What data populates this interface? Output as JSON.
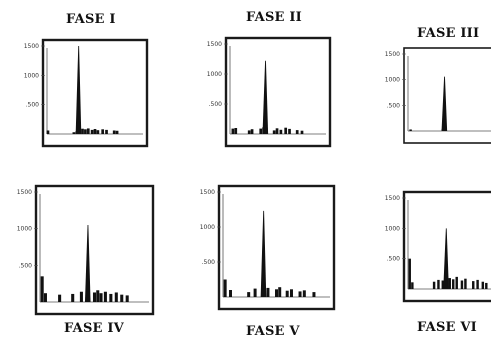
{
  "figure": {
    "colors": {
      "ink": "#111111",
      "frame": "#1a1a1a",
      "axis": "#555555",
      "label": "#333333"
    }
  },
  "chart_data": [
    {
      "type": "bar",
      "title": "FASE I",
      "yticks": [
        "1500",
        "1000",
        ".500"
      ],
      "ylim": [
        0,
        1500
      ],
      "grid": false,
      "peak": {
        "x": 0.33,
        "value": 1500
      },
      "x": [
        0.01,
        0.28,
        0.31,
        0.37,
        0.4,
        0.43,
        0.47,
        0.5,
        0.53,
        0.58,
        0.62,
        0.7,
        0.73
      ],
      "values": [
        60,
        30,
        45,
        90,
        80,
        95,
        70,
        85,
        65,
        80,
        70,
        60,
        55
      ]
    },
    {
      "type": "bar",
      "title": "FASE II",
      "yticks": [
        "1500",
        "1000",
        ".500"
      ],
      "ylim": [
        0,
        1500
      ],
      "grid": false,
      "peak": {
        "x": 0.37,
        "value": 1220
      },
      "x": [
        0.03,
        0.06,
        0.2,
        0.23,
        0.32,
        0.35,
        0.46,
        0.49,
        0.53,
        0.58,
        0.62,
        0.7,
        0.75
      ],
      "values": [
        90,
        100,
        60,
        80,
        90,
        110,
        60,
        95,
        70,
        105,
        85,
        65,
        55
      ]
    },
    {
      "type": "bar",
      "title": "FASE III",
      "yticks": [
        "1500",
        "1000",
        ".500"
      ],
      "ylim": [
        0,
        1500
      ],
      "grid": false,
      "peak": {
        "x": 0.42,
        "value": 1060
      },
      "x": [
        0.03,
        0.4
      ],
      "values": [
        30,
        40
      ]
    },
    {
      "type": "bar",
      "title": "FASE IV",
      "yticks": [
        "1500",
        "1000",
        ".500"
      ],
      "ylim": [
        0,
        1500
      ],
      "grid": false,
      "peak": {
        "x": 0.44,
        "value": 1050
      },
      "x": [
        0.02,
        0.05,
        0.18,
        0.3,
        0.38,
        0.5,
        0.53,
        0.56,
        0.6,
        0.65,
        0.7,
        0.75,
        0.8
      ],
      "values": [
        350,
        120,
        100,
        110,
        140,
        130,
        160,
        120,
        140,
        110,
        130,
        100,
        90
      ]
    },
    {
      "type": "bar",
      "title": "FASE V",
      "yticks": [
        "1500",
        "1000",
        ".500"
      ],
      "ylim": [
        0,
        1500
      ],
      "grid": false,
      "peak": {
        "x": 0.38,
        "value": 1230
      },
      "x": [
        0.02,
        0.07,
        0.24,
        0.3,
        0.38,
        0.42,
        0.5,
        0.53,
        0.6,
        0.64,
        0.72,
        0.76,
        0.85
      ],
      "values": [
        250,
        100,
        70,
        120,
        150,
        130,
        110,
        140,
        90,
        110,
        80,
        95,
        70
      ]
    },
    {
      "type": "bar",
      "title": "FASE VI",
      "yticks": [
        "1500",
        "1000",
        ".500"
      ],
      "ylim": [
        0,
        1500
      ],
      "grid": false,
      "peak": {
        "x": 0.44,
        "value": 1000
      },
      "x": [
        0.02,
        0.05,
        0.3,
        0.35,
        0.4,
        0.48,
        0.52,
        0.56,
        0.62,
        0.66,
        0.75,
        0.8,
        0.86,
        0.9
      ],
      "values": [
        500,
        110,
        120,
        150,
        140,
        180,
        160,
        200,
        140,
        170,
        130,
        150,
        120,
        100
      ]
    }
  ]
}
